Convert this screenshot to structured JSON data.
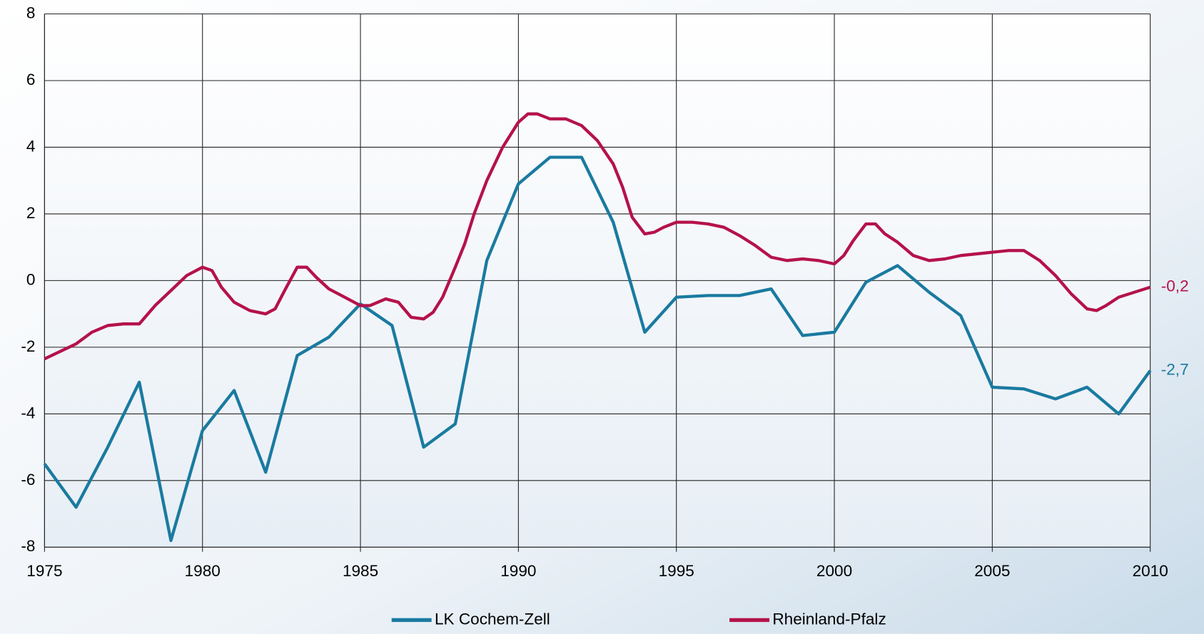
{
  "chart_data": {
    "type": "line",
    "xlim": [
      1975,
      2010
    ],
    "xticks": [
      1975,
      1980,
      1985,
      1990,
      1995,
      2000,
      2005,
      2010
    ],
    "ylim": [
      -8,
      8
    ],
    "yticks": [
      -8,
      -6,
      -4,
      -2,
      0,
      2,
      4,
      6,
      8
    ],
    "grid": true,
    "legend": "bottom",
    "series": [
      {
        "name": "LK Cochem-Zell",
        "color": "#1a7aa0",
        "end_label": "-2,7",
        "x": [
          1975,
          1976,
          1977,
          1978,
          1979,
          1980,
          1981,
          1982,
          1983,
          1984,
          1985,
          1986,
          1987,
          1988,
          1989,
          1990,
          1991,
          1992,
          1993,
          1994,
          1995,
          1996,
          1997,
          1998,
          1999,
          2000,
          2001,
          2002,
          2003,
          2004,
          2005,
          2006,
          2007,
          2008,
          2009,
          2010
        ],
        "values": [
          -5.5,
          -6.8,
          -5.0,
          -3.05,
          -7.8,
          -4.5,
          -3.3,
          -5.75,
          -2.25,
          -1.7,
          -0.7,
          -1.35,
          -5.0,
          -4.3,
          0.6,
          2.9,
          3.7,
          3.7,
          1.75,
          -1.55,
          -0.5,
          -0.45,
          -0.45,
          -0.25,
          -1.65,
          -1.55,
          -0.05,
          0.45,
          -0.35,
          -1.05,
          -3.2,
          -3.25,
          -3.55,
          -3.2,
          -4.0,
          -2.7
        ]
      },
      {
        "name": "Rheinland-Pfalz",
        "color": "#b5124a",
        "end_label": "-0,2",
        "x": [
          1975,
          1976,
          1976.5,
          1977,
          1977.5,
          1978,
          1978.5,
          1979,
          1979.5,
          1980,
          1980.3,
          1980.6,
          1981,
          1981.5,
          1982,
          1982.3,
          1982.6,
          1983,
          1983.3,
          1983.6,
          1984,
          1984.5,
          1985,
          1985.3,
          1985.8,
          1986.2,
          1986.6,
          1987,
          1987.3,
          1987.6,
          1988,
          1988.3,
          1988.6,
          1989,
          1989.5,
          1990,
          1990.3,
          1990.6,
          1991,
          1991.5,
          1992,
          1992.5,
          1993,
          1993.3,
          1993.6,
          1994,
          1994.3,
          1994.6,
          1995,
          1995.5,
          1996,
          1996.5,
          1997,
          1997.5,
          1998,
          1998.5,
          1999,
          1999.5,
          2000,
          2000.3,
          2000.6,
          2001,
          2001.3,
          2001.6,
          2002,
          2002.5,
          2003,
          2003.5,
          2004,
          2005,
          2005.5,
          2006,
          2006.5,
          2007,
          2007.5,
          2008,
          2008.3,
          2008.6,
          2009,
          2009.5,
          2010
        ],
        "values": [
          -2.35,
          -1.9,
          -1.55,
          -1.35,
          -1.3,
          -1.3,
          -0.75,
          -0.3,
          0.15,
          0.4,
          0.3,
          -0.2,
          -0.65,
          -0.9,
          -1.0,
          -0.85,
          -0.3,
          0.4,
          0.4,
          0.1,
          -0.25,
          -0.5,
          -0.75,
          -0.75,
          -0.55,
          -0.65,
          -1.1,
          -1.15,
          -0.95,
          -0.5,
          0.4,
          1.1,
          2.0,
          3.0,
          4.0,
          4.75,
          5.0,
          5.0,
          4.85,
          4.85,
          4.65,
          4.2,
          3.5,
          2.8,
          1.9,
          1.4,
          1.45,
          1.6,
          1.75,
          1.75,
          1.7,
          1.6,
          1.35,
          1.05,
          0.7,
          0.6,
          0.65,
          0.6,
          0.5,
          0.75,
          1.2,
          1.7,
          1.7,
          1.4,
          1.15,
          0.75,
          0.6,
          0.65,
          0.75,
          0.85,
          0.9,
          0.9,
          0.6,
          0.15,
          -0.4,
          -0.85,
          -0.9,
          -0.75,
          -0.5,
          -0.35,
          -0.2
        ]
      }
    ]
  }
}
